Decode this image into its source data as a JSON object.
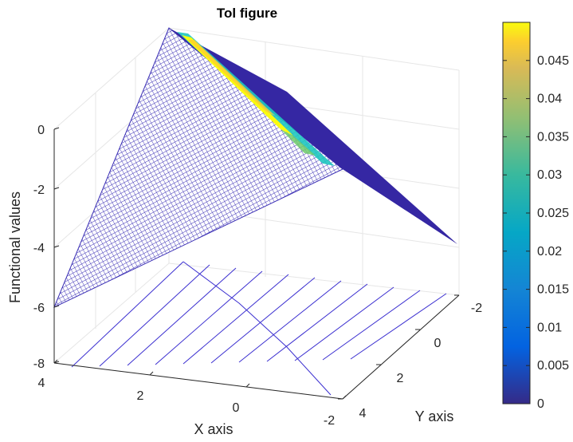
{
  "chart_data": {
    "type": "surface",
    "title": "Tol figure",
    "xlabel": "X axis",
    "ylabel": "Y axis",
    "zlabel": "Functional values",
    "x_ticks": [
      "4",
      "2",
      "0",
      "-2"
    ],
    "y_ticks": [
      "-2",
      "0",
      "2",
      "4"
    ],
    "z_ticks": [
      "0",
      "-2",
      "-4",
      "-6",
      "-8"
    ],
    "xlim": [
      -2,
      4
    ],
    "ylim": [
      -2,
      4
    ],
    "zlim": [
      -8,
      0
    ],
    "colorbar": {
      "ticks": [
        "0",
        "0.005",
        "0.01",
        "0.015",
        "0.02",
        "0.025",
        "0.03",
        "0.035",
        "0.04",
        "0.045"
      ],
      "range": [
        0,
        0.05
      ],
      "colormap": "parula"
    },
    "surface": {
      "corner_values": [
        {
          "x": 4,
          "y": -2,
          "z": 0
        },
        {
          "x": 4,
          "y": 4,
          "z": -6.2
        },
        {
          "x": -2,
          "y": -2,
          "z": -6.2
        },
        {
          "x": -2,
          "y": 4,
          "z": -4.3
        }
      ],
      "color_value_max": 0.05,
      "mesh_color": "#3b2fb5",
      "highlight_colors": [
        "#f9fb0e",
        "#1fc6c0"
      ]
    },
    "contour_color": "#3b2fd0",
    "grid": true
  }
}
